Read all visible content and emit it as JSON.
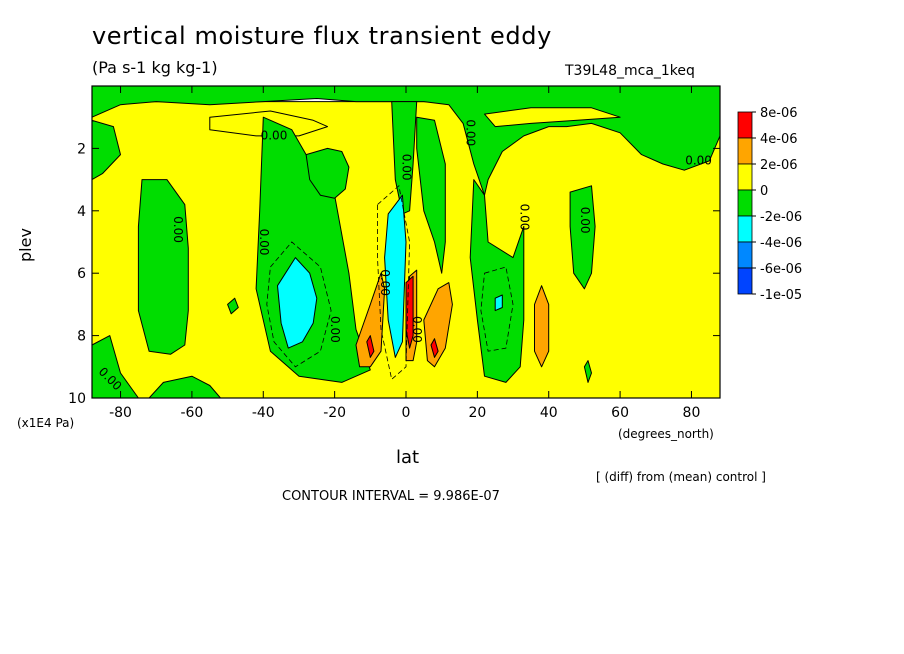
{
  "title": "vertical moisture flux transient eddy",
  "units": "(Pa s-1 kg kg-1)",
  "run_label": "T39L48_mca_1keq",
  "note": "[ (diff) from (mean) control ]",
  "contour_interval": "CONTOUR INTERVAL = 9.986E-07",
  "colors": {
    "red": "#ff0000",
    "orange": "#ffa500",
    "yellow": "#ffff00",
    "green": "#00dd00",
    "cyan": "#00ffff",
    "skyblue": "#0088ff",
    "blue": "#0044ff"
  },
  "chart_data": {
    "type": "heatmap",
    "title": "vertical moisture flux transient eddy",
    "subtitle": "(Pa s-1 kg kg-1)",
    "xlabel": "lat",
    "x_units": "(degrees_north)",
    "ylabel": "plev",
    "y_units": "(x1E4 Pa)",
    "xlim": [
      -88,
      88
    ],
    "ylim": [
      10,
      0
    ],
    "x_ticks": [
      -80,
      -60,
      -40,
      -20,
      0,
      20,
      40,
      60,
      80
    ],
    "y_ticks": [
      2,
      4,
      6,
      8,
      10
    ],
    "x_tick_labels": [
      "-80",
      "-60",
      "-40",
      "-20",
      "0",
      "20",
      "40",
      "60",
      "80"
    ],
    "y_tick_labels": [
      "2",
      "4",
      "6",
      "8",
      "10"
    ],
    "legend": {
      "position": "right",
      "labels": [
        "8e-06",
        "4e-06",
        "2e-06",
        "0",
        "-2e-06",
        "-4e-06",
        "-6e-06",
        "-1e-05"
      ],
      "colors": [
        "#ff0000",
        "#ffa500",
        "#ffff00",
        "#00dd00",
        "#00ffff",
        "#0088ff",
        "#0044ff"
      ]
    },
    "contour_labels": [
      {
        "text": "0.00",
        "lat": -37,
        "plev": 1.6,
        "rotate": 0
      },
      {
        "text": "0.00",
        "lat": 82,
        "plev": 2.4,
        "rotate": 0
      },
      {
        "text": "0.00",
        "lat": 0,
        "plev": 2.6,
        "rotate": 90
      },
      {
        "text": "0.00",
        "lat": 18,
        "plev": 1.5,
        "rotate": 90
      },
      {
        "text": "0.00",
        "lat": -64,
        "plev": 4.6,
        "rotate": 90
      },
      {
        "text": "0.00",
        "lat": -40,
        "plev": 5.0,
        "rotate": 90
      },
      {
        "text": "0.00",
        "lat": 33,
        "plev": 4.2,
        "rotate": 90
      },
      {
        "text": "0.00",
        "lat": 50,
        "plev": 4.3,
        "rotate": 90
      },
      {
        "text": "0.00",
        "lat": -20,
        "plev": 7.8,
        "rotate": 90
      },
      {
        "text": "0.00",
        "lat": -6,
        "plev": 6.3,
        "rotate": 90
      },
      {
        "text": "0.00",
        "lat": 3,
        "plev": 7.8,
        "rotate": 90
      },
      {
        "text": "0.00",
        "lat": -83,
        "plev": 9.4,
        "rotate": 45
      }
    ],
    "regions": [
      {
        "value": "0 to 2e-06",
        "color": "#ffff00",
        "poly": [
          [
            -88,
            0.5
          ],
          [
            -88,
            10
          ],
          [
            88,
            10
          ],
          [
            88,
            0.5
          ]
        ]
      },
      {
        "value": "-2e-06 to 0",
        "color": "#00dd00",
        "poly": [
          [
            -88,
            0
          ],
          [
            88,
            0
          ],
          [
            88,
            1.6
          ],
          [
            85,
            2.4
          ],
          [
            78,
            2.7
          ],
          [
            72,
            2.5
          ],
          [
            66,
            2.2
          ],
          [
            60,
            1.5
          ],
          [
            52,
            1.2
          ],
          [
            45,
            1.3
          ],
          [
            40,
            1.3
          ],
          [
            33,
            1.6
          ],
          [
            27,
            2.1
          ],
          [
            23,
            3.0
          ],
          [
            22,
            3.5
          ],
          [
            19,
            2.5
          ],
          [
            16,
            1.2
          ],
          [
            12,
            0.6
          ],
          [
            5,
            0.5
          ],
          [
            -5,
            0.5
          ],
          [
            -14,
            0.5
          ],
          [
            -25,
            0.4
          ],
          [
            -40,
            0.5
          ],
          [
            -55,
            0.6
          ],
          [
            -70,
            0.5
          ],
          [
            -80,
            0.6
          ],
          [
            -88,
            1.0
          ]
        ]
      },
      {
        "value": "0 to 2e-06",
        "color": "#ffff00",
        "poly": [
          [
            -55,
            1.0
          ],
          [
            -38,
            0.8
          ],
          [
            -26,
            1.1
          ],
          [
            -22,
            1.3
          ],
          [
            -30,
            1.6
          ],
          [
            -42,
            1.6
          ],
          [
            -55,
            1.4
          ]
        ]
      },
      {
        "value": "0 to 2e-06",
        "color": "#ffff00",
        "poly": [
          [
            22,
            0.9
          ],
          [
            35,
            0.7
          ],
          [
            52,
            0.7
          ],
          [
            60,
            1.0
          ],
          [
            48,
            1.1
          ],
          [
            35,
            1.2
          ],
          [
            25,
            1.3
          ]
        ]
      },
      {
        "value": "-2e-06 to 0",
        "color": "#00dd00",
        "poly": [
          [
            -88,
            1.1
          ],
          [
            -82,
            1.3
          ],
          [
            -80,
            2.2
          ],
          [
            -85,
            2.8
          ],
          [
            -88,
            3.0
          ]
        ]
      },
      {
        "value": "-2e-06 to 0",
        "color": "#00dd00",
        "poly": [
          [
            -74,
            3.0
          ],
          [
            -67,
            3.0
          ],
          [
            -62,
            3.8
          ],
          [
            -61,
            5.2
          ],
          [
            -61,
            7.2
          ],
          [
            -62,
            8.3
          ],
          [
            -66,
            8.6
          ],
          [
            -72,
            8.5
          ],
          [
            -75,
            7.2
          ],
          [
            -75,
            4.5
          ]
        ]
      },
      {
        "value": "-2e-06 to 0",
        "color": "#00dd00",
        "poly": [
          [
            -40,
            1.0
          ],
          [
            -32,
            1.4
          ],
          [
            -28,
            2.2
          ],
          [
            -20,
            3.5
          ],
          [
            -16,
            6.0
          ],
          [
            -14,
            7.8
          ],
          [
            -10,
            9.1
          ],
          [
            -18,
            9.5
          ],
          [
            -30,
            9.3
          ],
          [
            -38,
            8.5
          ],
          [
            -42,
            6.5
          ],
          [
            -41,
            4.0
          ]
        ]
      },
      {
        "value": "-2e-06 to 0",
        "color": "#00dd00",
        "poly": [
          [
            -28,
            2.2
          ],
          [
            -22,
            2.0
          ],
          [
            -18,
            2.1
          ],
          [
            -16,
            2.6
          ],
          [
            -17,
            3.3
          ],
          [
            -20,
            3.6
          ],
          [
            -24,
            3.5
          ],
          [
            -27,
            3.0
          ]
        ]
      },
      {
        "value": "-2e-06 to 0",
        "color": "#00dd00",
        "poly": [
          [
            -4,
            0.5
          ],
          [
            3,
            0.5
          ],
          [
            2,
            2.5
          ],
          [
            1,
            4.0
          ],
          [
            -1,
            4.1
          ],
          [
            -3,
            3.0
          ]
        ]
      },
      {
        "value": "-2e-06 to 0",
        "color": "#00dd00",
        "poly": [
          [
            3,
            1.0
          ],
          [
            8,
            1.1
          ],
          [
            11,
            2.5
          ],
          [
            11,
            5.0
          ],
          [
            10,
            6.0
          ],
          [
            8,
            5.0
          ],
          [
            5,
            4.0
          ],
          [
            3,
            2.0
          ]
        ]
      },
      {
        "value": "-2e-06 to 0",
        "color": "#00dd00",
        "poly": [
          [
            19,
            3.0
          ],
          [
            22,
            3.5
          ],
          [
            23,
            5.0
          ],
          [
            30,
            5.5
          ],
          [
            33,
            4.5
          ],
          [
            33,
            7.5
          ],
          [
            32,
            9.0
          ],
          [
            28,
            9.5
          ],
          [
            22,
            9.3
          ],
          [
            20,
            7.5
          ],
          [
            18,
            5.5
          ]
        ]
      },
      {
        "value": "-2e-06 to 0",
        "color": "#00dd00",
        "poly": [
          [
            46,
            3.4
          ],
          [
            52,
            3.2
          ],
          [
            53,
            4.5
          ],
          [
            52,
            6.0
          ],
          [
            50,
            6.5
          ],
          [
            47,
            6.0
          ],
          [
            46,
            4.5
          ]
        ]
      },
      {
        "value": "-2e-06 to 0",
        "color": "#00dd00",
        "poly": [
          [
            -88,
            8.3
          ],
          [
            -83,
            8.0
          ],
          [
            -80,
            9.2
          ],
          [
            -75,
            10
          ],
          [
            -88,
            10
          ]
        ]
      },
      {
        "value": "-2e-06 to 0",
        "color": "#00dd00",
        "poly": [
          [
            -68,
            9.5
          ],
          [
            -60,
            9.3
          ],
          [
            -55,
            9.6
          ],
          [
            -52,
            10
          ],
          [
            -72,
            10
          ]
        ]
      },
      {
        "value": "-2e-06 to 0",
        "color": "#00dd00",
        "poly": [
          [
            -50,
            7.0
          ],
          [
            -48,
            6.8
          ],
          [
            -47,
            7.1
          ],
          [
            -49,
            7.3
          ]
        ]
      },
      {
        "value": "-2e-06 to 0",
        "color": "#00dd00",
        "poly": [
          [
            50,
            9.0
          ],
          [
            51,
            8.8
          ],
          [
            52,
            9.2
          ],
          [
            51,
            9.5
          ]
        ]
      },
      {
        "value": "-4e-06 to -2e-06",
        "color": "#00ffff",
        "poly": [
          [
            -36,
            6.4
          ],
          [
            -31,
            5.5
          ],
          [
            -27,
            6.0
          ],
          [
            -25,
            6.8
          ],
          [
            -26,
            7.6
          ],
          [
            -29,
            8.2
          ],
          [
            -33,
            8.4
          ],
          [
            -35,
            7.6
          ]
        ]
      },
      {
        "value": "-4e-06 to -2e-06",
        "color": "#00ffff",
        "poly": [
          [
            -5,
            4.1
          ],
          [
            -1,
            3.5
          ],
          [
            0,
            5.0
          ],
          [
            -1,
            8.2
          ],
          [
            -3,
            8.7
          ],
          [
            -5,
            7.5
          ],
          [
            -6,
            5.5
          ]
        ]
      },
      {
        "value": "-4e-06 to -2e-06",
        "color": "#00ffff",
        "poly": [
          [
            25,
            6.8
          ],
          [
            27,
            6.7
          ],
          [
            27,
            7.1
          ],
          [
            25,
            7.2
          ]
        ]
      },
      {
        "value": "2e-06 to 4e-06",
        "color": "#ffa500",
        "poly": [
          [
            -14,
            8.3
          ],
          [
            -10,
            7.0
          ],
          [
            -7,
            6.0
          ],
          [
            -6,
            6.5
          ],
          [
            -7,
            8.5
          ],
          [
            -10,
            9.0
          ],
          [
            -13,
            9.0
          ]
        ]
      },
      {
        "value": "2e-06 to 4e-06",
        "color": "#ffa500",
        "poly": [
          [
            1,
            6.1
          ],
          [
            3,
            5.9
          ],
          [
            3,
            8.2
          ],
          [
            2,
            8.8
          ],
          [
            0,
            8.8
          ],
          [
            0,
            7.0
          ]
        ]
      },
      {
        "value": "2e-06 to 4e-06",
        "color": "#ffa500",
        "poly": [
          [
            5,
            7.5
          ],
          [
            9,
            6.5
          ],
          [
            12,
            6.3
          ],
          [
            13,
            7.0
          ],
          [
            11,
            8.4
          ],
          [
            8,
            9.0
          ],
          [
            6,
            8.8
          ]
        ]
      },
      {
        "value": "2e-06 to 4e-06",
        "color": "#ffa500",
        "poly": [
          [
            36,
            7.0
          ],
          [
            38,
            6.4
          ],
          [
            40,
            7.0
          ],
          [
            40,
            8.5
          ],
          [
            38,
            9.0
          ],
          [
            36,
            8.5
          ]
        ]
      },
      {
        "value": "4e-06 to 8e-06",
        "color": "#ff0000",
        "poly": [
          [
            0,
            6.3
          ],
          [
            2,
            6.1
          ],
          [
            2,
            8.0
          ],
          [
            1,
            8.4
          ],
          [
            0,
            7.8
          ]
        ]
      },
      {
        "value": "4e-06 to 8e-06",
        "color": "#ff0000",
        "poly": [
          [
            7,
            8.3
          ],
          [
            8,
            8.1
          ],
          [
            9,
            8.5
          ],
          [
            8,
            8.7
          ]
        ]
      },
      {
        "value": "4e-06 to 8e-06",
        "color": "#ff0000",
        "poly": [
          [
            -11,
            8.2
          ],
          [
            -10,
            8.0
          ],
          [
            -9,
            8.5
          ],
          [
            -10,
            8.7
          ]
        ]
      }
    ]
  }
}
